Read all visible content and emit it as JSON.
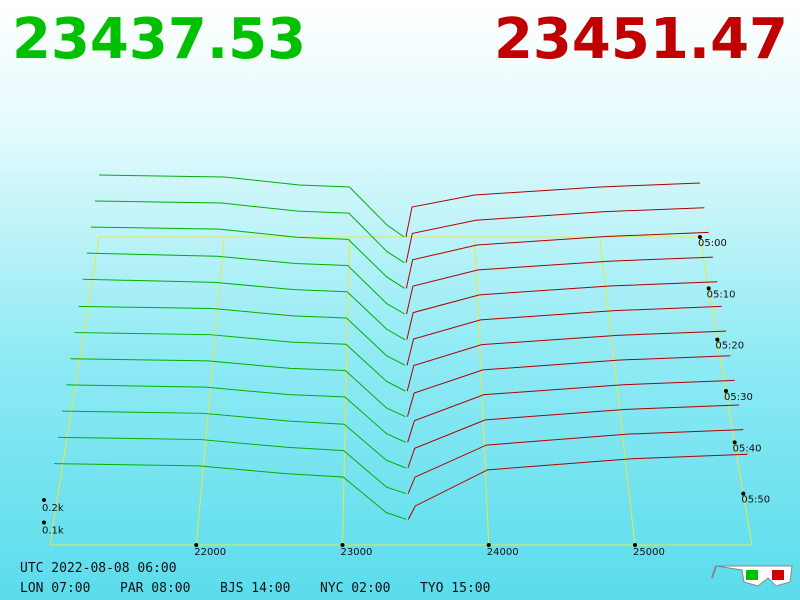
{
  "chart_data": {
    "type": "depth3d",
    "bid_price": "23437.53",
    "ask_price": "23451.47",
    "xlim": [
      21000,
      25800
    ],
    "xticks": [
      22000,
      23000,
      24000,
      25000
    ],
    "ylim": [
      0,
      1000
    ],
    "yticks": [
      {
        "value": 100,
        "label": "0.1k"
      },
      {
        "value": 200,
        "label": "0.2k"
      }
    ],
    "time_lim": [
      "05:00",
      "06:00"
    ],
    "time_ticks": [
      "05:00",
      "05:10",
      "05:20",
      "05:30",
      "05:40",
      "05:50"
    ],
    "times": [
      "05:00",
      "05:05",
      "05:10",
      "05:15",
      "05:20",
      "05:25",
      "05:30",
      "05:35",
      "05:40",
      "05:45",
      "05:50",
      "05:55"
    ],
    "grid_color": "#e8e840",
    "bids": {
      "color": "#00b000",
      "prices": [
        21000,
        22000,
        22600,
        23000,
        23300,
        23437.53
      ],
      "depths": [
        [
          310,
          300,
          260,
          250,
          60,
          0
        ],
        [
          305,
          295,
          255,
          245,
          55,
          0
        ],
        [
          300,
          290,
          250,
          240,
          55,
          0
        ],
        [
          295,
          280,
          245,
          235,
          50,
          0
        ],
        [
          290,
          275,
          240,
          230,
          50,
          0
        ],
        [
          280,
          270,
          235,
          225,
          45,
          0
        ],
        [
          275,
          265,
          230,
          220,
          45,
          0
        ],
        [
          270,
          260,
          225,
          215,
          40,
          0
        ],
        [
          265,
          255,
          220,
          210,
          40,
          0
        ],
        [
          260,
          250,
          215,
          200,
          35,
          0
        ],
        [
          255,
          245,
          210,
          195,
          30,
          0
        ],
        [
          250,
          240,
          205,
          190,
          30,
          0
        ]
      ]
    },
    "asks": {
      "color": "#b00000",
      "prices": [
        23451.47,
        23500,
        24000,
        25000,
        25800
      ],
      "depths": [
        [
          0,
          150,
          210,
          250,
          270
        ],
        [
          0,
          145,
          210,
          252,
          272
        ],
        [
          0,
          140,
          212,
          254,
          274
        ],
        [
          0,
          135,
          214,
          256,
          276
        ],
        [
          0,
          130,
          215,
          258,
          278
        ],
        [
          0,
          125,
          216,
          260,
          280
        ],
        [
          0,
          120,
          218,
          262,
          282
        ],
        [
          0,
          110,
          218,
          264,
          284
        ],
        [
          0,
          100,
          220,
          266,
          286
        ],
        [
          0,
          90,
          220,
          268,
          288
        ],
        [
          0,
          75,
          220,
          270,
          290
        ],
        [
          0,
          60,
          222,
          272,
          292
        ]
      ]
    }
  },
  "footer": {
    "utc": "UTC 2022-08-08 06:00",
    "clocks": [
      "LON 07:00",
      "PAR 08:00",
      "BJS 14:00",
      "NYC 02:00",
      "TYO 15:00"
    ]
  }
}
